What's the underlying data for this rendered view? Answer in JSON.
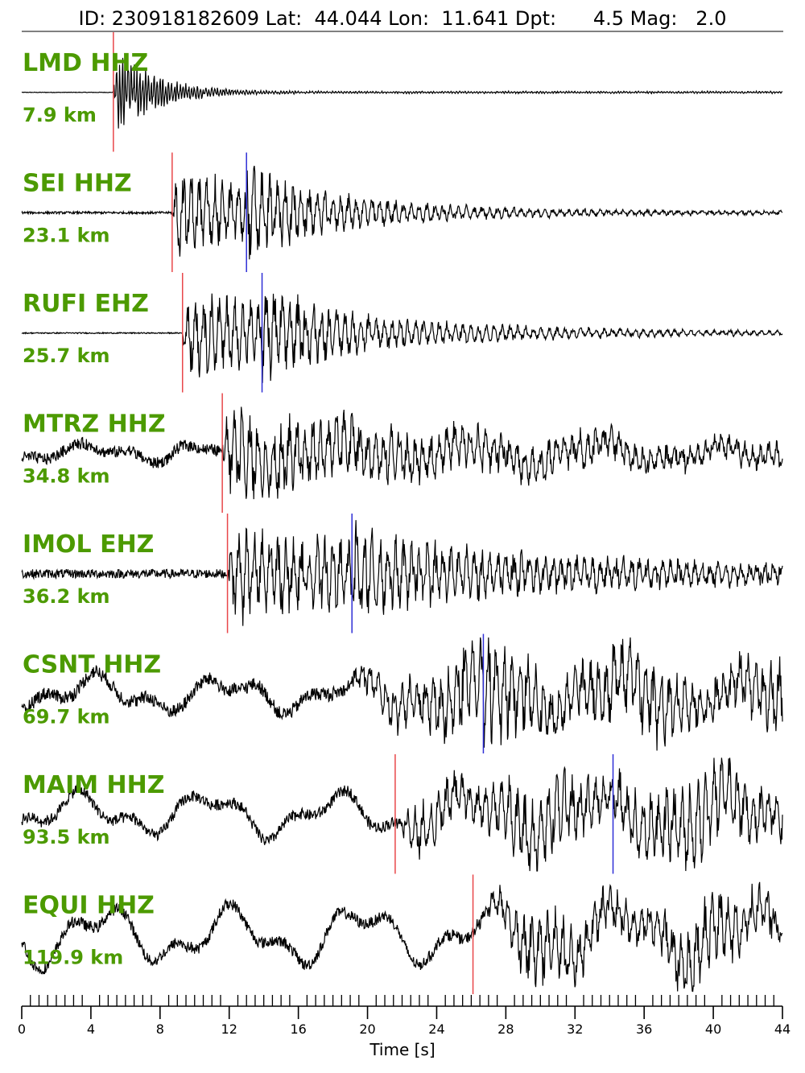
{
  "header": {
    "title": "ID: 230918182609 Lat:  44.044 Lon:  11.641 Dpt:      4.5 Mag:   2.0"
  },
  "colors": {
    "label": "#4c9a00",
    "p_pick": "#e8474a",
    "s_pick": "#2f2fd6",
    "trace": "#000000"
  },
  "chart_data": {
    "type": "line",
    "title": "ID: 230918182609 Lat:  44.044 Lon:  11.641 Dpt:      4.5 Mag:   2.0",
    "xlabel": "Time [s]",
    "xlim": [
      0,
      44
    ],
    "x_ticks": [
      0,
      4,
      8,
      12,
      16,
      20,
      24,
      28,
      32,
      36,
      40,
      44
    ],
    "minor_tick_step": 0.5,
    "grid": false,
    "traces": [
      {
        "label": "LMD HHZ",
        "distance": "7.9 km",
        "p_pick": 5.3,
        "s_pick": null,
        "onset": 5.3,
        "noise": 0.005,
        "peak": 0.95,
        "coda_decay": 0.45,
        "low_freq": 0
      },
      {
        "label": "SEI HHZ",
        "distance": "23.1 km",
        "p_pick": 8.7,
        "s_pick": 13.0,
        "onset": 8.7,
        "noise": 0.02,
        "peak": 0.9,
        "coda_decay": 0.12,
        "low_freq": 0
      },
      {
        "label": "RUFI EHZ",
        "distance": "25.7 km",
        "p_pick": 9.3,
        "s_pick": 13.9,
        "onset": 9.3,
        "noise": 0.01,
        "peak": 0.9,
        "coda_decay": 0.1,
        "low_freq": 0
      },
      {
        "label": "MTRZ HHZ",
        "distance": "34.8 km",
        "p_pick": 11.6,
        "s_pick": null,
        "onset": 11.6,
        "noise": 0.1,
        "peak": 0.85,
        "coda_decay": 0.05,
        "low_freq": 0.25
      },
      {
        "label": "IMOL EHZ",
        "distance": "36.2 km",
        "p_pick": 11.9,
        "s_pick": 19.1,
        "onset": 11.9,
        "noise": 0.08,
        "peak": 0.9,
        "coda_decay": 0.05,
        "low_freq": 0
      },
      {
        "label": "CSNT HHZ",
        "distance": "69.7 km",
        "p_pick": null,
        "s_pick": 26.7,
        "onset": 19.0,
        "noise": 0.12,
        "peak": 0.85,
        "coda_decay": 0.0,
        "low_freq": 0.45
      },
      {
        "label": "MAIM HHZ",
        "distance": "93.5 km",
        "p_pick": 21.6,
        "s_pick": 34.2,
        "onset": 21.6,
        "noise": 0.1,
        "peak": 0.8,
        "coda_decay": 0.0,
        "low_freq": 0.5
      },
      {
        "label": "EQUI HHZ",
        "distance": "119.9 km",
        "p_pick": 26.1,
        "s_pick": null,
        "onset": 26.1,
        "noise": 0.1,
        "peak": 0.7,
        "coda_decay": 0.0,
        "low_freq": 0.7
      }
    ]
  }
}
